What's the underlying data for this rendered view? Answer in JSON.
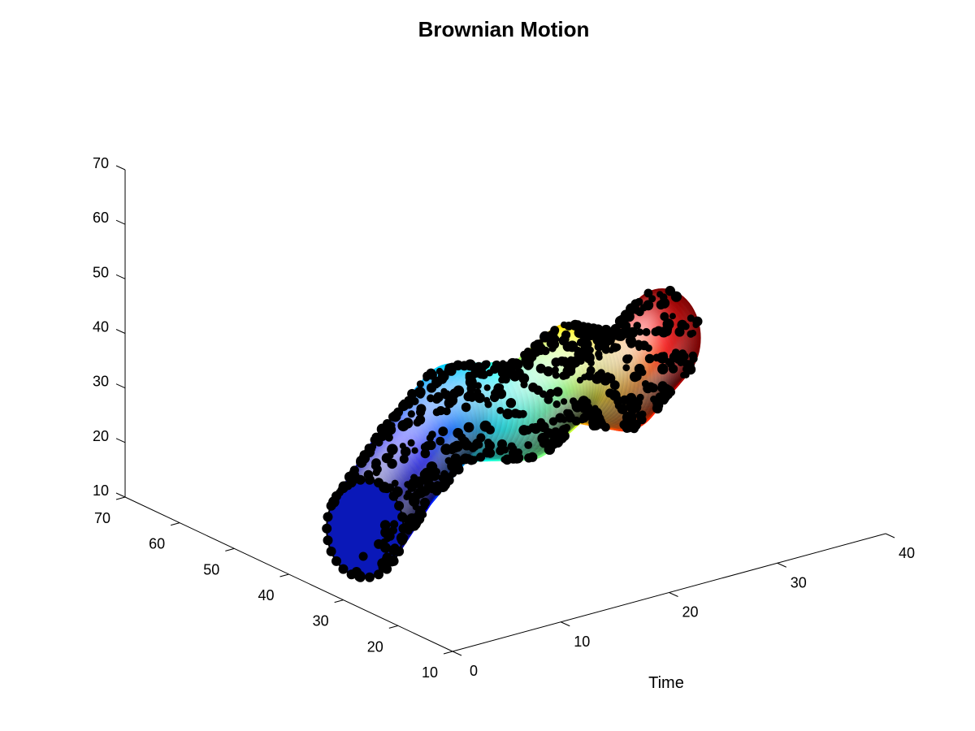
{
  "chart_data": {
    "type": "3d-surface",
    "title": "Brownian Motion",
    "xlabel": "Time",
    "ylabel": "",
    "zlabel": "",
    "colormap": "jet",
    "grid": false,
    "x_axis": {
      "ticks": [
        0,
        10,
        20,
        30,
        40
      ],
      "range": [
        0,
        40
      ]
    },
    "y_axis": {
      "ticks": [
        10,
        20,
        30,
        40,
        50,
        60,
        70
      ],
      "range": [
        10,
        70
      ]
    },
    "z_axis": {
      "ticks": [
        10,
        20,
        30,
        40,
        50,
        60,
        70
      ],
      "range": [
        10,
        70
      ]
    },
    "tube_path": [
      {
        "t": 2,
        "y": 30,
        "z": 22
      },
      {
        "t": 8,
        "y": 35,
        "z": 27
      },
      {
        "t": 14,
        "y": 38,
        "z": 33
      },
      {
        "t": 20,
        "y": 36,
        "z": 31
      },
      {
        "t": 26,
        "y": 40,
        "z": 33
      },
      {
        "t": 32,
        "y": 42,
        "z": 27
      },
      {
        "t": 37,
        "y": 45,
        "z": 31
      }
    ],
    "tube_radius": 9,
    "marker_color": "#000000"
  }
}
